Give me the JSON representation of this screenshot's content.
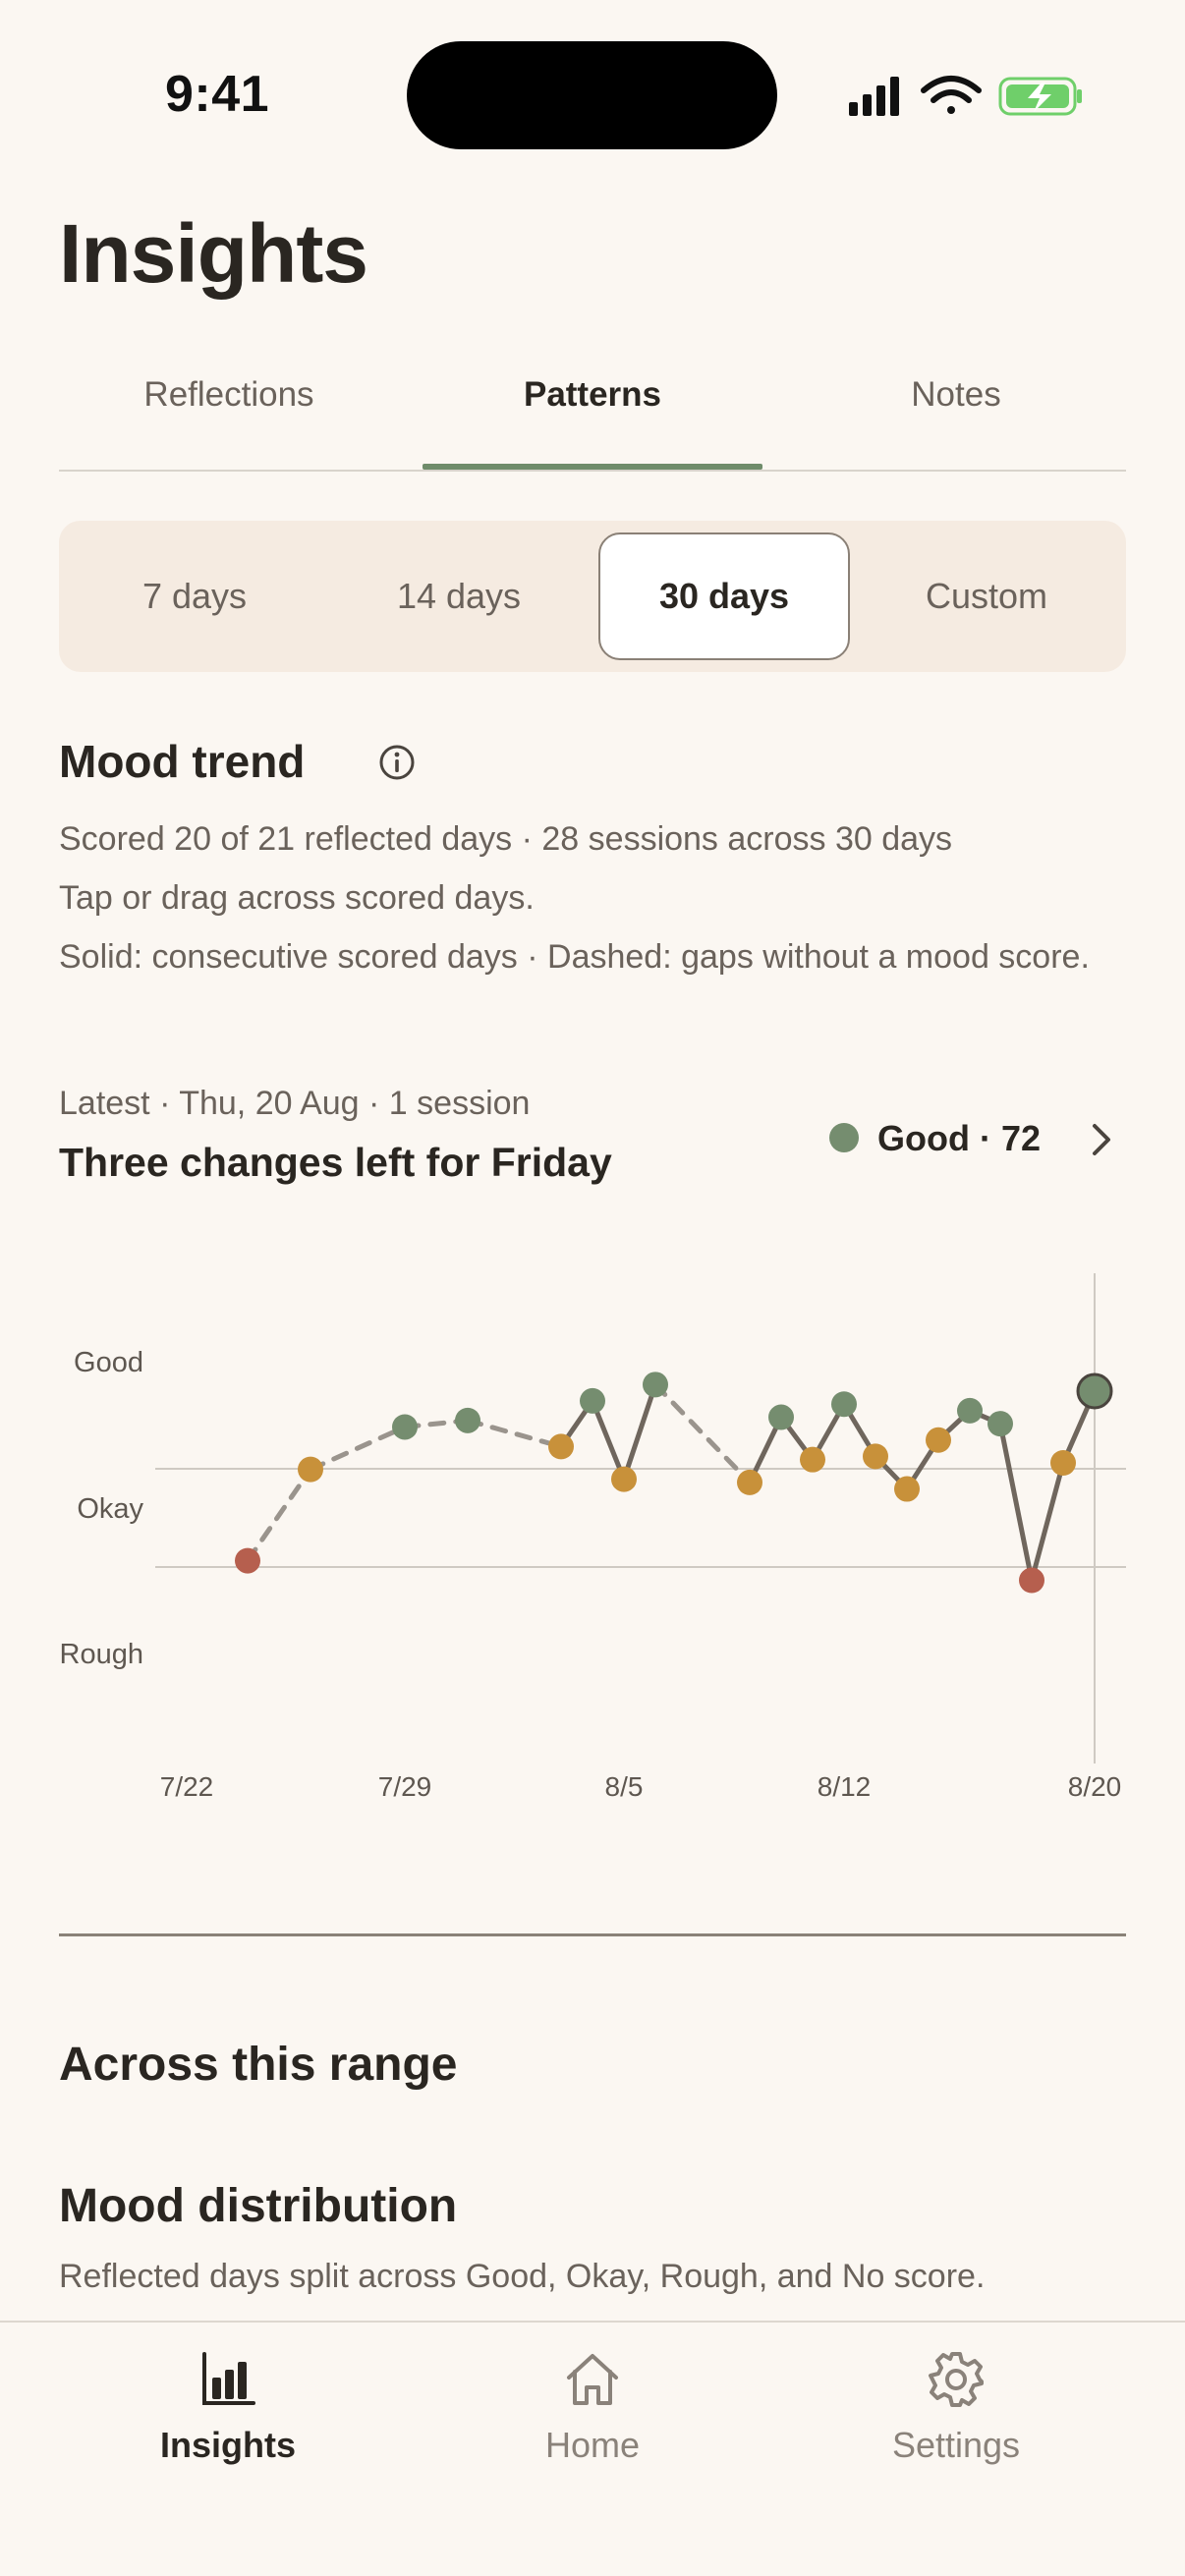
{
  "status_bar": {
    "time": "9:41"
  },
  "page_title": "Insights",
  "tabs": [
    {
      "label": "Reflections",
      "active": false
    },
    {
      "label": "Patterns",
      "active": true
    },
    {
      "label": "Notes",
      "active": false
    }
  ],
  "range_options": [
    {
      "label": "7 days",
      "active": false
    },
    {
      "label": "14 days",
      "active": false
    },
    {
      "label": "30 days",
      "active": true
    },
    {
      "label": "Custom",
      "active": false
    }
  ],
  "mood_trend": {
    "title": "Mood trend",
    "info_icon": "info-icon",
    "summary": "Scored 20 of 21 reflected days · 28 sessions across 30 days",
    "hint": "Tap or drag across scored days.",
    "legend_note": "Solid: consecutive scored days · Dashed: gaps without a mood score."
  },
  "latest": {
    "meta": "Latest · Thu, 20 Aug · 1 session",
    "title": "Three changes left for Friday",
    "badge": "Good · 72",
    "badge_color": "#758D6F"
  },
  "chart_data": {
    "type": "line",
    "y_labels": [
      "Good",
      "Okay",
      "Rough"
    ],
    "x_tick_labels": [
      "7/22",
      "7/29",
      "8/5",
      "8/12",
      "8/20"
    ],
    "colors": {
      "Good": "#758D6F",
      "Okay": "#C8913A",
      "Rough": "#B65F4E",
      "line": "#6F665D",
      "gap_line": "#9A948D"
    },
    "points": [
      {
        "date": "7/25",
        "mood": "Rough",
        "score": 20
      },
      {
        "date": "7/27",
        "mood": "Okay",
        "score": 48
      },
      {
        "date": "7/30",
        "mood": "Good",
        "score": 61
      },
      {
        "date": "7/32",
        "mood": "Good",
        "score": 63
      },
      {
        "date": "8/3",
        "mood": "Okay",
        "score": 55
      },
      {
        "date": "8/4",
        "mood": "Good",
        "score": 69
      },
      {
        "date": "8/5",
        "mood": "Okay",
        "score": 45
      },
      {
        "date": "8/6",
        "mood": "Good",
        "score": 74
      },
      {
        "date": "8/10",
        "mood": "Okay",
        "score": 44
      },
      {
        "date": "8/11",
        "mood": "Good",
        "score": 64
      },
      {
        "date": "8/12",
        "mood": "Okay",
        "score": 51
      },
      {
        "date": "8/13",
        "mood": "Good",
        "score": 68
      },
      {
        "date": "8/14",
        "mood": "Okay",
        "score": 52
      },
      {
        "date": "8/15",
        "mood": "Okay",
        "score": 42
      },
      {
        "date": "8/16",
        "mood": "Okay",
        "score": 57
      },
      {
        "date": "8/17",
        "mood": "Good",
        "score": 66
      },
      {
        "date": "8/18",
        "mood": "Good",
        "score": 62
      },
      {
        "date": "8/19",
        "mood": "Rough",
        "score": 14
      },
      {
        "date": "8/20a",
        "mood": "Okay",
        "score": 50
      },
      {
        "date": "8/20",
        "mood": "Good",
        "score": 72
      }
    ],
    "segments_dashed": [
      [
        0,
        1
      ],
      [
        1,
        2
      ],
      [
        2,
        3
      ],
      [
        3,
        4
      ],
      [
        7,
        8
      ]
    ],
    "selected_index": 19
  },
  "across_range_title": "Across this range",
  "distribution": {
    "title": "Mood distribution",
    "subtitle": "Reflected days split across Good, Okay, Rough, and No score."
  },
  "bottom_nav": [
    {
      "label": "Insights",
      "icon": "bar-chart-icon",
      "active": true
    },
    {
      "label": "Home",
      "icon": "home-icon",
      "active": false
    },
    {
      "label": "Settings",
      "icon": "gear-icon",
      "active": false
    }
  ]
}
